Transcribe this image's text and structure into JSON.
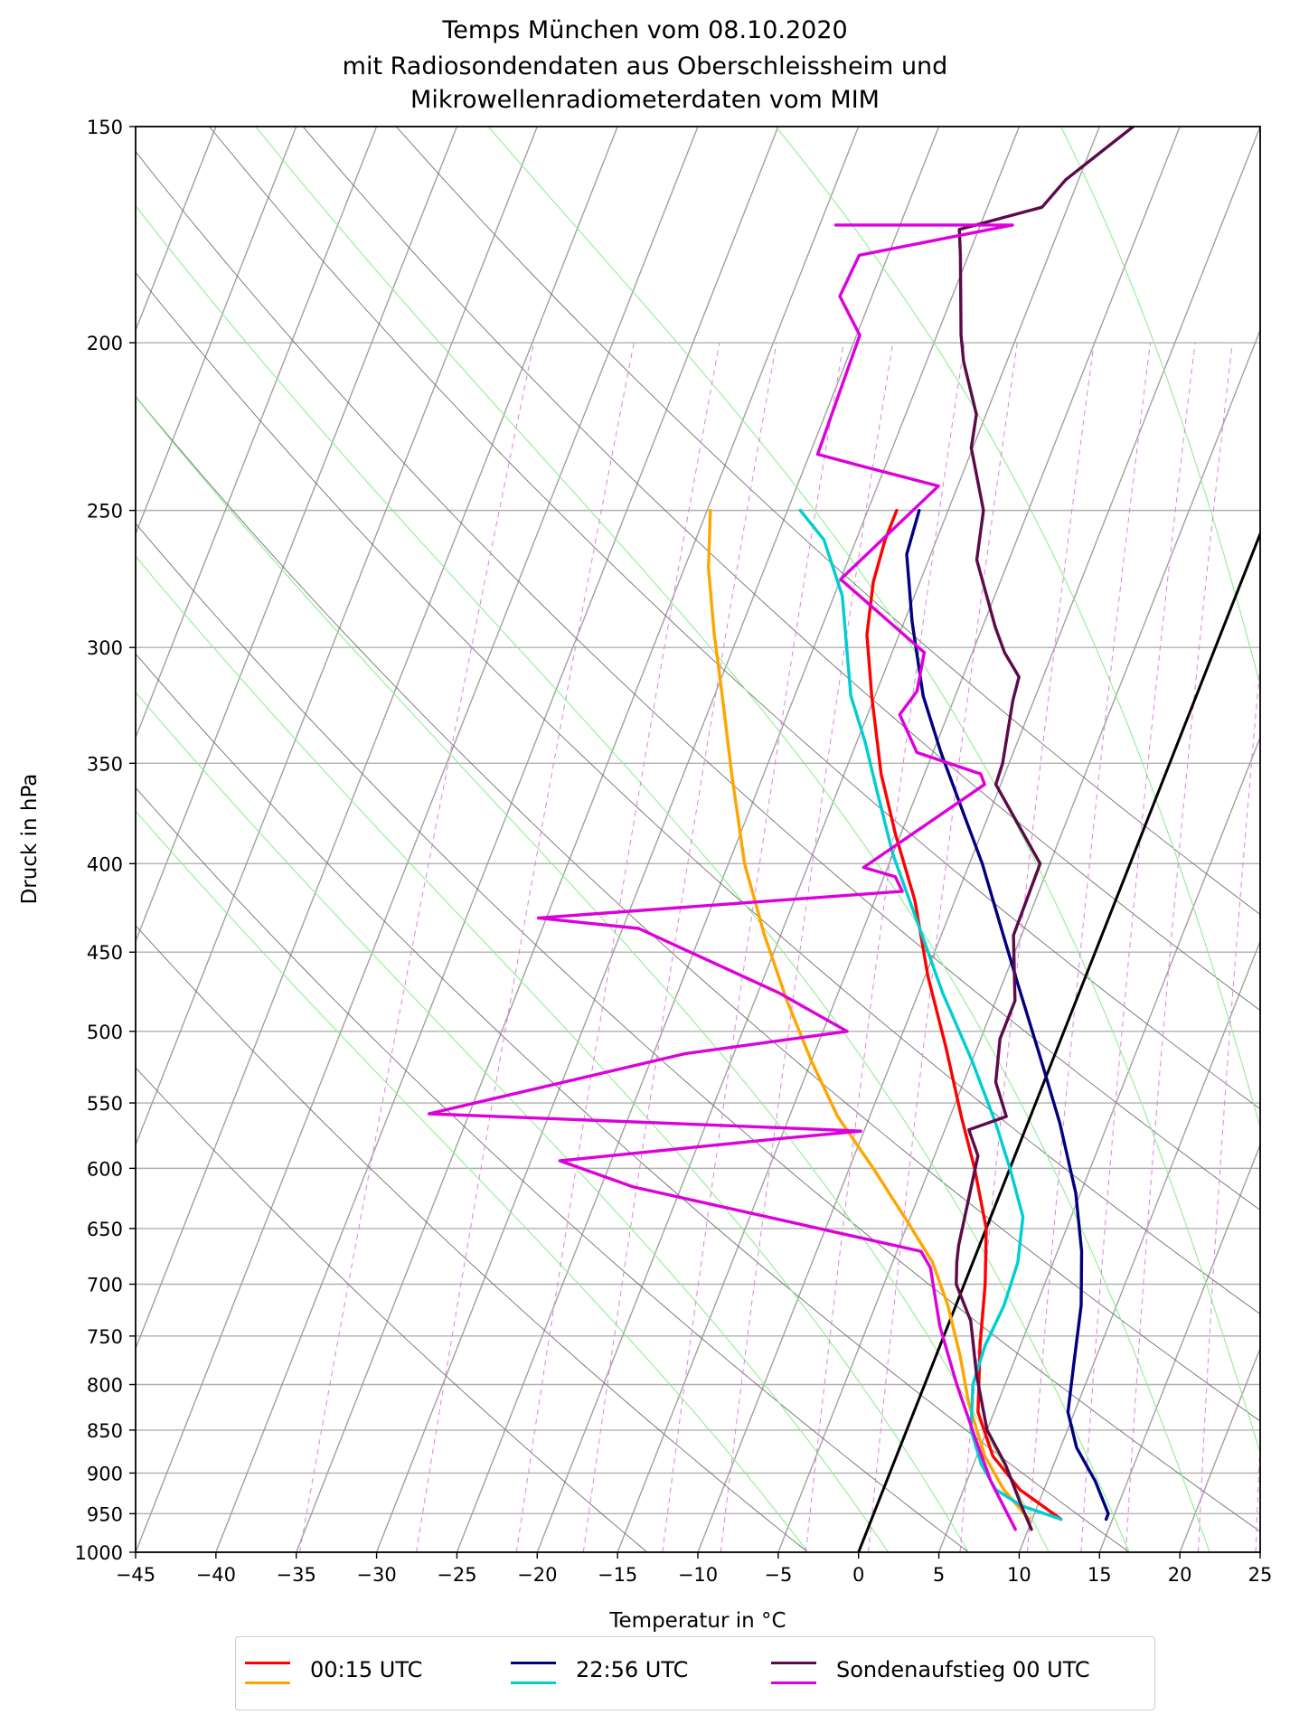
{
  "title": {
    "line1": "Temps München vom 08.10.2020",
    "line2": "mit Radiosondendaten aus Oberschleissheim und",
    "line3": "Mikrowellenradiometerdaten vom MIM"
  },
  "legend": [
    {
      "label": "00:15 UTC",
      "colors": [
        "#ff0000",
        "#ffa500"
      ]
    },
    {
      "label": "22:56 UTC",
      "colors": [
        "#000080",
        "#00ced1"
      ]
    },
    {
      "label": "Sondenaufstieg 00 UTC",
      "colors": [
        "#5c0a4a",
        "#dd00dd"
      ]
    }
  ],
  "chart_data": {
    "type": "line",
    "diagram": "skew-T log-p",
    "title": "Temps München vom 08.10.2020 mit Radiosondendaten aus Oberschleissheim und Mikrowellenradiometerdaten vom MIM",
    "xlabel": "Temperatur in $^\\circ$C",
    "ylabel": "Druck in hPa",
    "xlim": [
      -45,
      25
    ],
    "ylim": [
      1000,
      150
    ],
    "y_scale": "log",
    "x_ticks": [
      -45,
      -40,
      -35,
      -30,
      -25,
      -20,
      -15,
      -10,
      -5,
      0,
      5,
      10,
      15,
      20,
      25
    ],
    "x_tick_labels": [
      "−45",
      "−40",
      "−35",
      "−30",
      "−25",
      "−20",
      "−15",
      "−10",
      "−5",
      "0",
      "5",
      "10",
      "15",
      "20",
      "25"
    ],
    "y_ticks": [
      1000,
      950,
      900,
      850,
      800,
      750,
      700,
      650,
      600,
      550,
      500,
      450,
      400,
      350,
      300,
      250,
      200,
      150
    ],
    "grid": true,
    "legend_position": "bottom",
    "series": [
      {
        "name": "00:15 UTC",
        "variable": "temperature",
        "color": "#ff0000",
        "points": [
          [
            11.8,
            957
          ],
          [
            8.5,
            920
          ],
          [
            6,
            880
          ],
          [
            4,
            830
          ],
          [
            2.5,
            760
          ],
          [
            1.3,
            700
          ],
          [
            0,
            650
          ],
          [
            -2.2,
            600
          ],
          [
            -4.3,
            560
          ],
          [
            -7,
            510
          ],
          [
            -9.8,
            465
          ],
          [
            -12.5,
            420
          ],
          [
            -15.3,
            385
          ],
          [
            -17.7,
            355
          ],
          [
            -20.2,
            320
          ],
          [
            -22,
            295
          ],
          [
            -22.9,
            275
          ],
          [
            -23.2,
            260
          ],
          [
            -23.2,
            250
          ]
        ]
      },
      {
        "name": "00:15 UTC",
        "variable": "dewpoint",
        "color": "#ffa500",
        "points": [
          [
            9.8,
            957
          ],
          [
            7.5,
            920
          ],
          [
            5.5,
            880
          ],
          [
            3.2,
            820
          ],
          [
            1.5,
            770
          ],
          [
            -0.5,
            720
          ],
          [
            -2.5,
            680
          ],
          [
            -5,
            645
          ],
          [
            -8.5,
            600
          ],
          [
            -12,
            560
          ],
          [
            -15,
            520
          ],
          [
            -18,
            480
          ],
          [
            -21,
            440
          ],
          [
            -24,
            400
          ],
          [
            -27,
            355
          ],
          [
            -29.5,
            320
          ],
          [
            -31.5,
            295
          ],
          [
            -33.5,
            270
          ],
          [
            -34.8,
            250
          ]
        ]
      },
      {
        "name": "22:56 UTC",
        "variable": "temperature",
        "color": "#000080",
        "points": [
          [
            14.6,
            957
          ],
          [
            14.6,
            950
          ],
          [
            13,
            910
          ],
          [
            11,
            870
          ],
          [
            9.6,
            830
          ],
          [
            8.8,
            780
          ],
          [
            7.8,
            720
          ],
          [
            6.5,
            670
          ],
          [
            4.7,
            620
          ],
          [
            2,
            565
          ],
          [
            -1,
            515
          ],
          [
            -4,
            470
          ],
          [
            -6.5,
            435
          ],
          [
            -9.2,
            400
          ],
          [
            -12,
            370
          ],
          [
            -14.5,
            345
          ],
          [
            -17,
            320
          ],
          [
            -19.5,
            290
          ],
          [
            -21.5,
            265
          ],
          [
            -21.8,
            250
          ]
        ]
      },
      {
        "name": "22:56 UTC",
        "variable": "dewpoint",
        "color": "#00ced1",
        "points": [
          [
            11.8,
            957
          ],
          [
            9,
            940
          ],
          [
            7,
            920
          ],
          [
            5.5,
            890
          ],
          [
            4,
            850
          ],
          [
            3,
            800
          ],
          [
            2.8,
            760
          ],
          [
            3,
            720
          ],
          [
            2.8,
            680
          ],
          [
            2,
            640
          ],
          [
            0,
            600
          ],
          [
            -2,
            565
          ],
          [
            -5,
            520
          ],
          [
            -8.5,
            475
          ],
          [
            -12,
            430
          ],
          [
            -15,
            395
          ],
          [
            -17.8,
            360
          ],
          [
            -19.5,
            340
          ],
          [
            -21.5,
            320
          ],
          [
            -24.5,
            280
          ],
          [
            -27,
            260
          ],
          [
            -29.2,
            250
          ]
        ]
      },
      {
        "name": "Sondenaufstieg 00 UTC",
        "variable": "temperature",
        "color": "#5c0a4a",
        "points": [
          [
            10.2,
            970
          ],
          [
            9,
            940
          ],
          [
            7,
            890
          ],
          [
            5,
            850
          ],
          [
            3,
            790
          ],
          [
            1.3,
            735
          ],
          [
            -0.5,
            700
          ],
          [
            -1,
            680
          ],
          [
            -1.3,
            665
          ],
          [
            -2.3,
            590
          ],
          [
            -3.5,
            570
          ],
          [
            -1.5,
            560
          ],
          [
            -3,
            535
          ],
          [
            -3.8,
            505
          ],
          [
            -3.8,
            480
          ],
          [
            -5.5,
            440
          ],
          [
            -5.6,
            400
          ],
          [
            -10.3,
            360
          ],
          [
            -10.4,
            350
          ],
          [
            -11.3,
            322
          ],
          [
            -11.5,
            312
          ],
          [
            -13,
            302
          ],
          [
            -14.2,
            292
          ],
          [
            -17,
            267
          ],
          [
            -17.8,
            250
          ],
          [
            -20.1,
            230
          ],
          [
            -20.6,
            220
          ],
          [
            -22.7,
            205
          ],
          [
            -23.5,
            198
          ],
          [
            -25.5,
            178
          ],
          [
            -26.2,
            172
          ],
          [
            -21.6,
            167
          ],
          [
            -20.8,
            161
          ],
          [
            -17.9,
            150
          ]
        ]
      },
      {
        "name": "Sondenaufstieg 00 UTC",
        "variable": "dewpoint",
        "color": "#dd00dd",
        "points": [
          [
            9.2,
            970
          ],
          [
            6.5,
            910
          ],
          [
            4.5,
            860
          ],
          [
            2,
            800
          ],
          [
            -0.5,
            740
          ],
          [
            -2.5,
            685
          ],
          [
            -3.5,
            670
          ],
          [
            -23,
            615
          ],
          [
            -28.2,
            594
          ],
          [
            -15.3,
            577
          ],
          [
            -10.2,
            571
          ],
          [
            -14.1,
            569
          ],
          [
            -37.5,
            558
          ],
          [
            -23,
            515
          ],
          [
            -13.5,
            500
          ],
          [
            -18.7,
            475
          ],
          [
            -29,
            436
          ],
          [
            -35.5,
            430
          ],
          [
            -13.5,
            415
          ],
          [
            -14.3,
            407
          ],
          [
            -16.5,
            402
          ],
          [
            -11,
            360
          ],
          [
            -11.5,
            355
          ],
          [
            -16,
            345
          ],
          [
            -18,
            328
          ],
          [
            -17.5,
            318
          ],
          [
            -18,
            302
          ],
          [
            -25,
            274
          ],
          [
            -21.2,
            242
          ],
          [
            -26.2,
            236
          ],
          [
            -29.5,
            232
          ],
          [
            -29.8,
            198
          ],
          [
            -32,
            188
          ],
          [
            -31.8,
            178
          ],
          [
            -23,
            171
          ],
          [
            -34,
            171
          ]
        ]
      }
    ],
    "background_lines": {
      "isotherms_every_C": 5,
      "dry_adiabats_theta_K": [
        260,
        270,
        280,
        290,
        300,
        310,
        320,
        330,
        340,
        350,
        360
      ],
      "moist_adiabats_theta_w_K": [
        270,
        275,
        280,
        285,
        290,
        295,
        300,
        305,
        310
      ],
      "mixing_ratio_g_per_kg": [
        0.2,
        0.4,
        0.7,
        1,
        1.5,
        2,
        3,
        4,
        6,
        8,
        10,
        12,
        16,
        20
      ],
      "zero_isotherm": true
    }
  }
}
